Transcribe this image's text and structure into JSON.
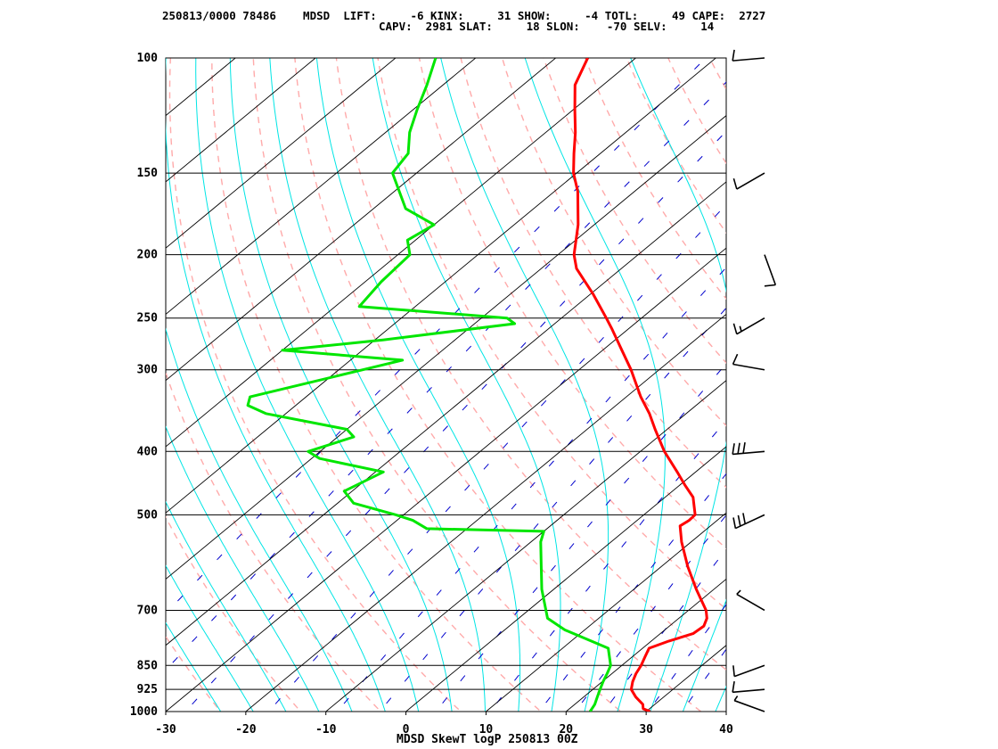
{
  "header": {
    "line1": "250813/0000 78486    MDSD  LIFT:     -6 KINX:     31 SHOW:     -4 TOTL:     49 CAPE:  2727",
    "line2": "CAPV:  2981 SLAT:     18 SLON:    -70 SELV:     14"
  },
  "chart_data": {
    "type": "line",
    "title": "MDSD SkewT logP 250813 00Z",
    "xlabel": "",
    "ylabel": "",
    "x_axis": {
      "ticks": [
        -30,
        -20,
        -10,
        0,
        10,
        20,
        30,
        40
      ],
      "range": [
        -30,
        40
      ],
      "units": "degC at 1000 hPa"
    },
    "y_axis": {
      "scale": "log",
      "range": [
        1000,
        100
      ],
      "ticks": [
        100,
        150,
        200,
        250,
        300,
        400,
        500,
        700,
        850,
        925,
        1000
      ]
    },
    "grid": true,
    "colors": {
      "temperature": "#ff0000",
      "dewpoint": "#00e600",
      "isotherm": "#000000",
      "dry_adiabat": "#ffaaaa",
      "moist_adiabat": "#00e5e5",
      "mixing_ratio": "#0000cc",
      "wind_barb": "#000000"
    },
    "series": [
      {
        "key": "temperature",
        "points": [
          [
            1000,
            30.5
          ],
          [
            990,
            29.2
          ],
          [
            975,
            28.5
          ],
          [
            950,
            26.5
          ],
          [
            925,
            24.8
          ],
          [
            900,
            23.8
          ],
          [
            875,
            23.0
          ],
          [
            850,
            22.4
          ],
          [
            825,
            21.6
          ],
          [
            800,
            20.8
          ],
          [
            780,
            22.2
          ],
          [
            760,
            24.1
          ],
          [
            740,
            24.3
          ],
          [
            720,
            23.5
          ],
          [
            700,
            22.2
          ],
          [
            650,
            17.8
          ],
          [
            600,
            13.3
          ],
          [
            550,
            8.8
          ],
          [
            520,
            6.2
          ],
          [
            510,
            6.5
          ],
          [
            500,
            6.4
          ],
          [
            470,
            3.5
          ],
          [
            450,
            0.6
          ],
          [
            430,
            -2.3
          ],
          [
            400,
            -7.0
          ],
          [
            370,
            -11.5
          ],
          [
            350,
            -14.6
          ],
          [
            330,
            -18.2
          ],
          [
            300,
            -23.5
          ],
          [
            280,
            -27.6
          ],
          [
            260,
            -32.0
          ],
          [
            250,
            -34.4
          ],
          [
            230,
            -39.6
          ],
          [
            210,
            -45.6
          ],
          [
            200,
            -48.0
          ],
          [
            180,
            -52.0
          ],
          [
            160,
            -57.1
          ],
          [
            150,
            -60.4
          ],
          [
            140,
            -63.3
          ],
          [
            130,
            -66.3
          ],
          [
            120,
            -69.8
          ],
          [
            110,
            -73.5
          ],
          [
            100,
            -76.0
          ]
        ]
      },
      {
        "key": "dewpoint",
        "points": [
          [
            1000,
            23.0
          ],
          [
            990,
            22.8
          ],
          [
            975,
            22.5
          ],
          [
            950,
            21.7
          ],
          [
            925,
            20.9
          ],
          [
            900,
            20.1
          ],
          [
            875,
            19.4
          ],
          [
            850,
            18.6
          ],
          [
            800,
            15.7
          ],
          [
            750,
            7.5
          ],
          [
            720,
            3.6
          ],
          [
            700,
            2.2
          ],
          [
            650,
            -1.5
          ],
          [
            600,
            -5.0
          ],
          [
            550,
            -8.8
          ],
          [
            530,
            -10.0
          ],
          [
            525,
            -25.0
          ],
          [
            510,
            -28.0
          ],
          [
            500,
            -31.0
          ],
          [
            480,
            -38.0
          ],
          [
            460,
            -41.0
          ],
          [
            430,
            -39.0
          ],
          [
            410,
            -49.0
          ],
          [
            400,
            -51.5
          ],
          [
            380,
            -48.0
          ],
          [
            370,
            -50.0
          ],
          [
            350,
            -62.5
          ],
          [
            340,
            -66.0
          ],
          [
            330,
            -67.0
          ],
          [
            300,
            -57.0
          ],
          [
            290,
            -53.5
          ],
          [
            280,
            -70.0
          ],
          [
            270,
            -59.0
          ],
          [
            255,
            -45.0
          ],
          [
            250,
            -46.8
          ],
          [
            240,
            -67.0
          ],
          [
            220,
            -68.0
          ],
          [
            200,
            -68.5
          ],
          [
            190,
            -71.0
          ],
          [
            180,
            -70.0
          ],
          [
            170,
            -76.0
          ],
          [
            150,
            -83.0
          ],
          [
            140,
            -84.0
          ],
          [
            130,
            -87.0
          ],
          [
            120,
            -89.5
          ],
          [
            110,
            -92.0
          ],
          [
            100,
            -95.0
          ]
        ]
      }
    ],
    "wind_barbs": [
      {
        "p": 1000,
        "dir": 290,
        "spd": 5
      },
      {
        "p": 925,
        "dir": 265,
        "spd": 10
      },
      {
        "p": 850,
        "dir": 250,
        "spd": 10
      },
      {
        "p": 700,
        "dir": 300,
        "spd": 5
      },
      {
        "p": 500,
        "dir": 245,
        "spd": 30
      },
      {
        "p": 400,
        "dir": 265,
        "spd": 30
      },
      {
        "p": 300,
        "dir": 280,
        "spd": 10
      },
      {
        "p": 250,
        "dir": 240,
        "spd": 15
      },
      {
        "p": 200,
        "dir": 160,
        "spd": 10
      },
      {
        "p": 150,
        "dir": 240,
        "spd": 10
      },
      {
        "p": 100,
        "dir": 265,
        "spd": 10
      }
    ]
  }
}
